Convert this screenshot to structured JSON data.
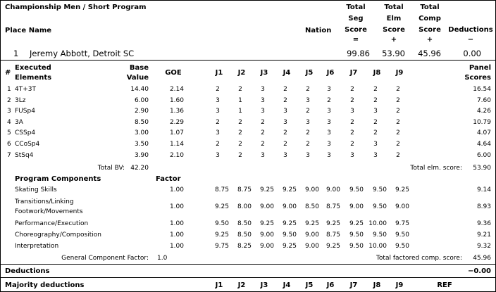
{
  "header": {
    "title": "Championship Men / Short Program",
    "place_name": "Place Name",
    "nation": "Nation",
    "total_seg": [
      "Total",
      "Seg",
      "Score",
      "="
    ],
    "total_elm": [
      "Total",
      "Elm",
      "Score",
      "+"
    ],
    "total_comp": [
      "Total",
      "Comp",
      "Score",
      "+"
    ],
    "deductions": [
      "Deductions",
      "−"
    ]
  },
  "skater": {
    "place": "1",
    "name": "Jeremy Abbott, Detroit SC",
    "seg": "99.86",
    "elm": "53.90",
    "comp": "45.96",
    "ded": "0.00"
  },
  "elements_header": {
    "num": "#",
    "exec1": "Executed",
    "exec2": "Elements",
    "base1": "Base",
    "base2": "Value",
    "goe": "GOE",
    "judges": [
      "J1",
      "J2",
      "J3",
      "J4",
      "J5",
      "J6",
      "J7",
      "J8",
      "J9"
    ],
    "panel1": "Panel",
    "panel2": "Scores"
  },
  "elements": [
    {
      "num": "1",
      "name": "4T+3T",
      "base": "14.40",
      "goe": "2.14",
      "j": [
        "2",
        "2",
        "3",
        "2",
        "2",
        "3",
        "2",
        "2",
        "2"
      ],
      "score": "16.54"
    },
    {
      "num": "2",
      "name": "3Lz",
      "base": "6.00",
      "goe": "1.60",
      "j": [
        "3",
        "1",
        "3",
        "2",
        "3",
        "2",
        "2",
        "2",
        "2"
      ],
      "score": "7.60"
    },
    {
      "num": "3",
      "name": "FUSp4",
      "base": "2.90",
      "goe": "1.36",
      "j": [
        "3",
        "1",
        "3",
        "3",
        "2",
        "3",
        "3",
        "3",
        "2"
      ],
      "score": "4.26"
    },
    {
      "num": "4",
      "name": "3A",
      "base": "8.50",
      "goe": "2.29",
      "j": [
        "2",
        "2",
        "2",
        "3",
        "3",
        "3",
        "2",
        "2",
        "2"
      ],
      "score": "10.79"
    },
    {
      "num": "5",
      "name": "CSSp4",
      "base": "3.00",
      "goe": "1.07",
      "j": [
        "3",
        "2",
        "2",
        "2",
        "2",
        "3",
        "2",
        "2",
        "2"
      ],
      "score": "4.07"
    },
    {
      "num": "6",
      "name": "CCoSp4",
      "base": "3.50",
      "goe": "1.14",
      "j": [
        "2",
        "2",
        "2",
        "2",
        "2",
        "3",
        "2",
        "3",
        "2"
      ],
      "score": "4.64"
    },
    {
      "num": "7",
      "name": "StSq4",
      "base": "3.90",
      "goe": "2.10",
      "j": [
        "3",
        "2",
        "3",
        "3",
        "3",
        "3",
        "3",
        "3",
        "2"
      ],
      "score": "6.00"
    }
  ],
  "totals": {
    "bv_label": "Total BV:",
    "bv": "42.20",
    "elm_label": "Total elm. score:",
    "elm": "53.90"
  },
  "components_header": {
    "title": "Program Components",
    "factor": "Factor"
  },
  "components": [
    {
      "name": [
        "Skating Skills"
      ],
      "factor": "1.00",
      "j": [
        "8.75",
        "8.75",
        "9.25",
        "9.25",
        "9.00",
        "9.00",
        "9.50",
        "9.50",
        "9.25"
      ],
      "score": "9.14"
    },
    {
      "name": [
        "Transitions/Linking",
        "Footwork/Movements"
      ],
      "factor": "1.00",
      "j": [
        "9.25",
        "8.00",
        "9.00",
        "9.00",
        "8.50",
        "8.75",
        "9.00",
        "9.50",
        "9.00"
      ],
      "score": "8.93"
    },
    {
      "name": [
        "Performance/Execution"
      ],
      "factor": "1.00",
      "j": [
        "9.50",
        "8.50",
        "9.25",
        "9.25",
        "9.25",
        "9.25",
        "9.25",
        "10.00",
        "9.75"
      ],
      "score": "9.36"
    },
    {
      "name": [
        "Choreography/Composition"
      ],
      "factor": "1.00",
      "j": [
        "9.25",
        "8.50",
        "9.00",
        "9.50",
        "9.00",
        "8.75",
        "9.50",
        "9.50",
        "9.50"
      ],
      "score": "9.21"
    },
    {
      "name": [
        "Interpretation"
      ],
      "factor": "1.00",
      "j": [
        "9.75",
        "8.25",
        "9.00",
        "9.25",
        "9.00",
        "9.25",
        "9.50",
        "10.00",
        "9.50"
      ],
      "score": "9.32"
    }
  ],
  "gcf": {
    "label": "General Component Factor:",
    "value": "1.0",
    "total_label": "Total factored comp. score:",
    "total": "45.96"
  },
  "deductions": {
    "label": "Deductions",
    "value": "−0.00"
  },
  "majority": {
    "label": "Majority deductions",
    "judges": [
      "J1",
      "J2",
      "J3",
      "J4",
      "J5",
      "J6",
      "J7",
      "J8",
      "J9"
    ],
    "ref": "REF"
  }
}
